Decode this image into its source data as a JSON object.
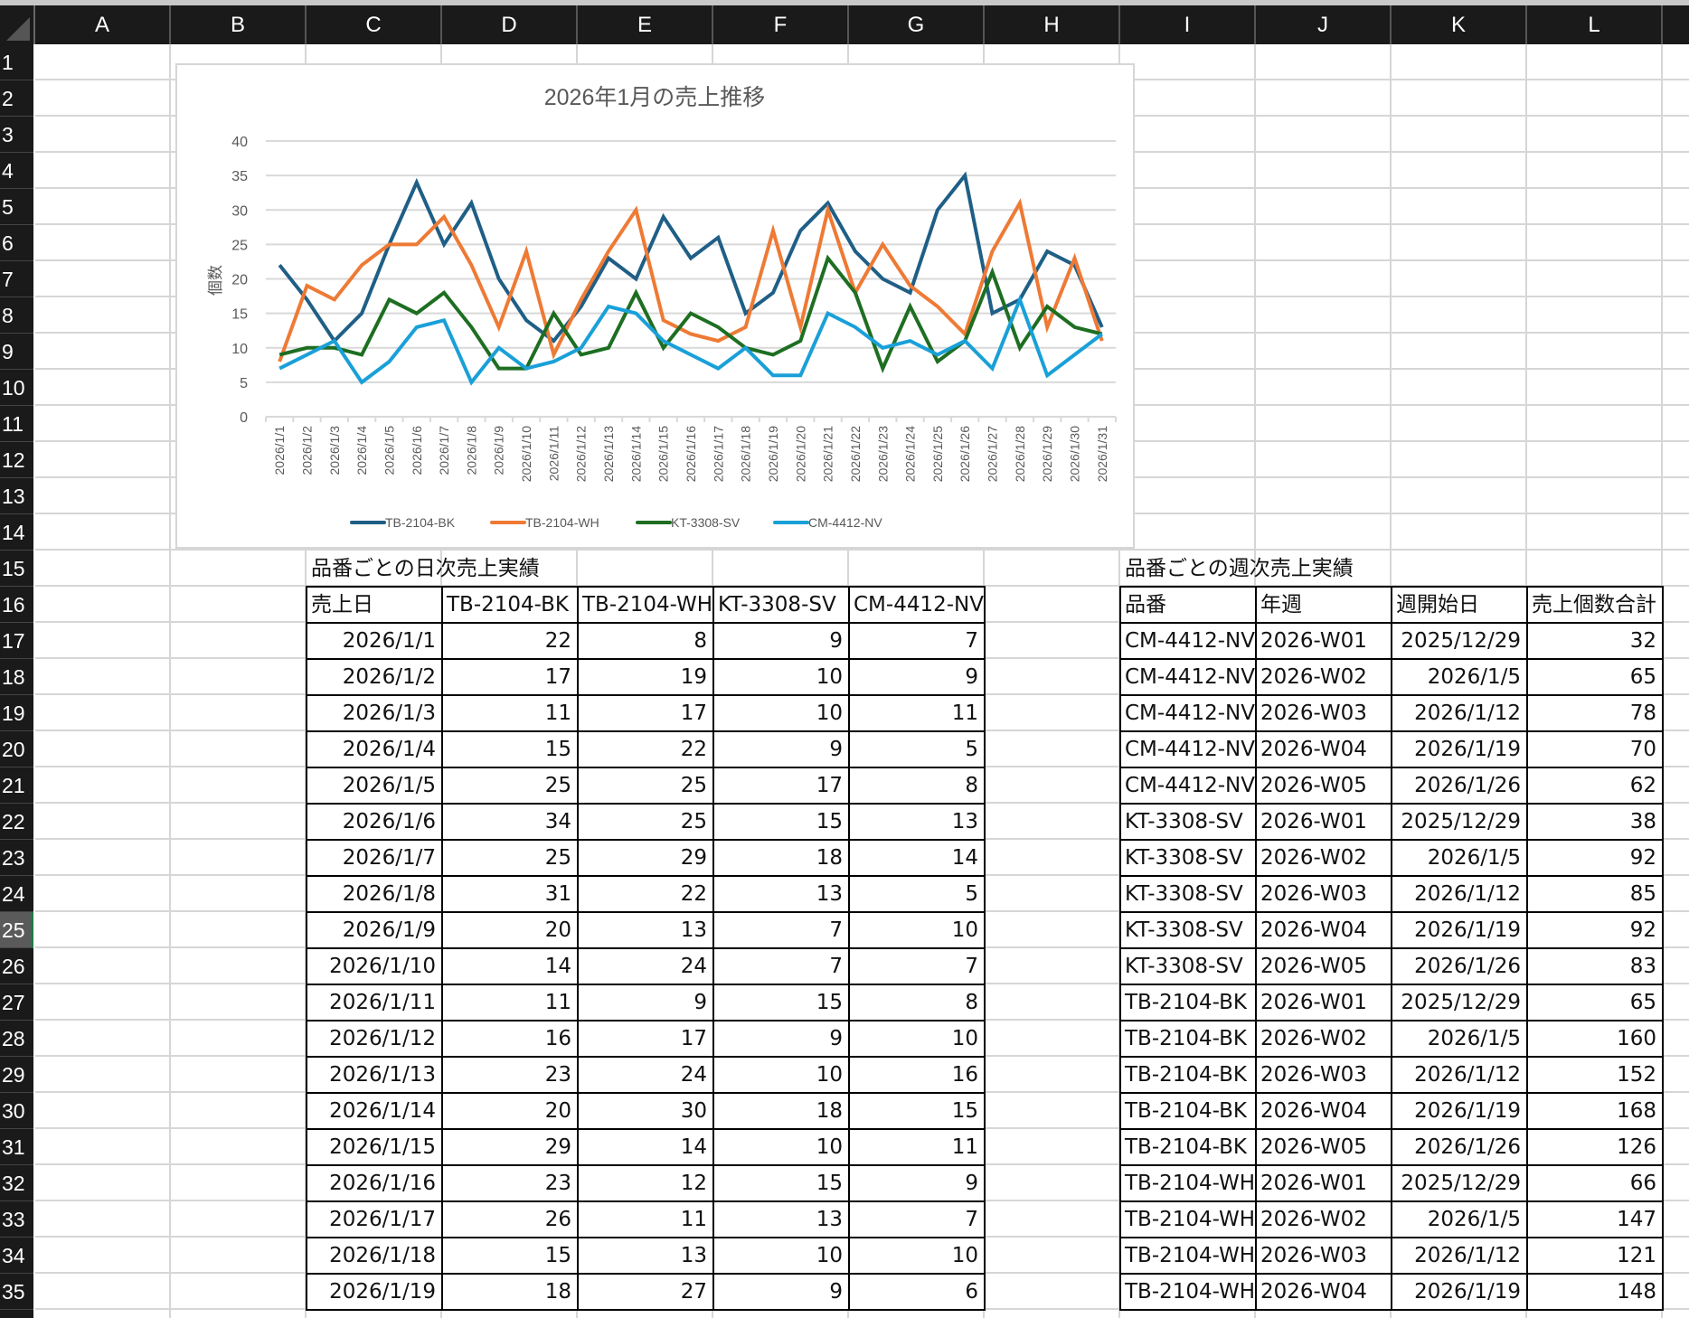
{
  "sheet": {
    "columns": [
      "A",
      "B",
      "C",
      "D",
      "E",
      "F",
      "G",
      "H",
      "I",
      "J",
      "K",
      "L"
    ],
    "rows": [
      "1",
      "2",
      "3",
      "4",
      "5",
      "6",
      "7",
      "8",
      "9",
      "10",
      "11",
      "12",
      "13",
      "14",
      "15",
      "16",
      "17",
      "18",
      "19",
      "20",
      "21",
      "22",
      "23",
      "24",
      "25",
      "26",
      "27",
      "28",
      "29",
      "30",
      "31",
      "32",
      "33",
      "34",
      "35"
    ],
    "selected_row": "25"
  },
  "daily_table": {
    "title": "品番ごとの日次売上実績",
    "headers": [
      "売上日",
      "TB-2104-BK",
      "TB-2104-WH",
      "KT-3308-SV",
      "CM-4412-NV"
    ],
    "rows": [
      [
        "2026/1/1",
        "22",
        "8",
        "9",
        "7"
      ],
      [
        "2026/1/2",
        "17",
        "19",
        "10",
        "9"
      ],
      [
        "2026/1/3",
        "11",
        "17",
        "10",
        "11"
      ],
      [
        "2026/1/4",
        "15",
        "22",
        "9",
        "5"
      ],
      [
        "2026/1/5",
        "25",
        "25",
        "17",
        "8"
      ],
      [
        "2026/1/6",
        "34",
        "25",
        "15",
        "13"
      ],
      [
        "2026/1/7",
        "25",
        "29",
        "18",
        "14"
      ],
      [
        "2026/1/8",
        "31",
        "22",
        "13",
        "5"
      ],
      [
        "2026/1/9",
        "20",
        "13",
        "7",
        "10"
      ],
      [
        "2026/1/10",
        "14",
        "24",
        "7",
        "7"
      ],
      [
        "2026/1/11",
        "11",
        "9",
        "15",
        "8"
      ],
      [
        "2026/1/12",
        "16",
        "17",
        "9",
        "10"
      ],
      [
        "2026/1/13",
        "23",
        "24",
        "10",
        "16"
      ],
      [
        "2026/1/14",
        "20",
        "30",
        "18",
        "15"
      ],
      [
        "2026/1/15",
        "29",
        "14",
        "10",
        "11"
      ],
      [
        "2026/1/16",
        "23",
        "12",
        "15",
        "9"
      ],
      [
        "2026/1/17",
        "26",
        "11",
        "13",
        "7"
      ],
      [
        "2026/1/18",
        "15",
        "13",
        "10",
        "10"
      ],
      [
        "2026/1/19",
        "18",
        "27",
        "9",
        "6"
      ]
    ]
  },
  "weekly_table": {
    "title": "品番ごとの週次売上実績",
    "headers": [
      "品番",
      "年週",
      "週開始日",
      "売上個数合計"
    ],
    "rows": [
      [
        "CM-4412-NV",
        "2026-W01",
        "2025/12/29",
        "32"
      ],
      [
        "CM-4412-NV",
        "2026-W02",
        "2026/1/5",
        "65"
      ],
      [
        "CM-4412-NV",
        "2026-W03",
        "2026/1/12",
        "78"
      ],
      [
        "CM-4412-NV",
        "2026-W04",
        "2026/1/19",
        "70"
      ],
      [
        "CM-4412-NV",
        "2026-W05",
        "2026/1/26",
        "62"
      ],
      [
        "KT-3308-SV",
        "2026-W01",
        "2025/12/29",
        "38"
      ],
      [
        "KT-3308-SV",
        "2026-W02",
        "2026/1/5",
        "92"
      ],
      [
        "KT-3308-SV",
        "2026-W03",
        "2026/1/12",
        "85"
      ],
      [
        "KT-3308-SV",
        "2026-W04",
        "2026/1/19",
        "92"
      ],
      [
        "KT-3308-SV",
        "2026-W05",
        "2026/1/26",
        "83"
      ],
      [
        "TB-2104-BK",
        "2026-W01",
        "2025/12/29",
        "65"
      ],
      [
        "TB-2104-BK",
        "2026-W02",
        "2026/1/5",
        "160"
      ],
      [
        "TB-2104-BK",
        "2026-W03",
        "2026/1/12",
        "152"
      ],
      [
        "TB-2104-BK",
        "2026-W04",
        "2026/1/19",
        "168"
      ],
      [
        "TB-2104-BK",
        "2026-W05",
        "2026/1/26",
        "126"
      ],
      [
        "TB-2104-WH",
        "2026-W01",
        "2025/12/29",
        "66"
      ],
      [
        "TB-2104-WH",
        "2026-W02",
        "2026/1/5",
        "147"
      ],
      [
        "TB-2104-WH",
        "2026-W03",
        "2026/1/12",
        "121"
      ],
      [
        "TB-2104-WH",
        "2026-W04",
        "2026/1/19",
        "148"
      ]
    ]
  },
  "chart_data": {
    "type": "line",
    "title": "2026年1月の売上推移",
    "xlabel": "",
    "ylabel": "個数",
    "ylim": [
      0,
      40
    ],
    "yticks": [
      "0",
      "5",
      "10",
      "15",
      "20",
      "25",
      "30",
      "35",
      "40"
    ],
    "grid": true,
    "legend": "bottom",
    "categories": [
      "2026/1/1",
      "2026/1/2",
      "2026/1/3",
      "2026/1/4",
      "2026/1/5",
      "2026/1/6",
      "2026/1/7",
      "2026/1/8",
      "2026/1/9",
      "2026/1/10",
      "2026/1/11",
      "2026/1/12",
      "2026/1/13",
      "2026/1/14",
      "2026/1/15",
      "2026/1/16",
      "2026/1/17",
      "2026/1/18",
      "2026/1/19",
      "2026/1/20",
      "2026/1/21",
      "2026/1/22",
      "2026/1/23",
      "2026/1/24",
      "2026/1/25",
      "2026/1/26",
      "2026/1/27",
      "2026/1/28",
      "2026/1/29",
      "2026/1/30",
      "2026/1/31"
    ],
    "series": [
      {
        "name": "TB-2104-BK",
        "color": "#1f5f86",
        "values": [
          22,
          17,
          11,
          15,
          25,
          34,
          25,
          31,
          20,
          14,
          11,
          16,
          23,
          20,
          29,
          23,
          26,
          15,
          18,
          27,
          31,
          24,
          20,
          18,
          30,
          35,
          15,
          17,
          24,
          22,
          13
        ]
      },
      {
        "name": "TB-2104-WH",
        "color": "#ee7a35",
        "values": [
          8,
          19,
          17,
          22,
          25,
          25,
          29,
          22,
          13,
          24,
          9,
          17,
          24,
          30,
          14,
          12,
          11,
          13,
          27,
          13,
          30,
          18,
          25,
          19,
          16,
          12,
          24,
          31,
          13,
          23,
          11
        ]
      },
      {
        "name": "KT-3308-SV",
        "color": "#1e6e22",
        "values": [
          9,
          10,
          10,
          9,
          17,
          15,
          18,
          13,
          7,
          7,
          15,
          9,
          10,
          18,
          10,
          15,
          13,
          10,
          9,
          11,
          23,
          18,
          7,
          16,
          8,
          11,
          21,
          10,
          16,
          13,
          12
        ]
      },
      {
        "name": "CM-4412-NV",
        "color": "#1aa0d8",
        "values": [
          7,
          9,
          11,
          5,
          8,
          13,
          14,
          5,
          10,
          7,
          8,
          10,
          16,
          15,
          11,
          9,
          7,
          10,
          6,
          6,
          15,
          13,
          10,
          11,
          9,
          11,
          7,
          17,
          6,
          9,
          12
        ]
      }
    ]
  }
}
